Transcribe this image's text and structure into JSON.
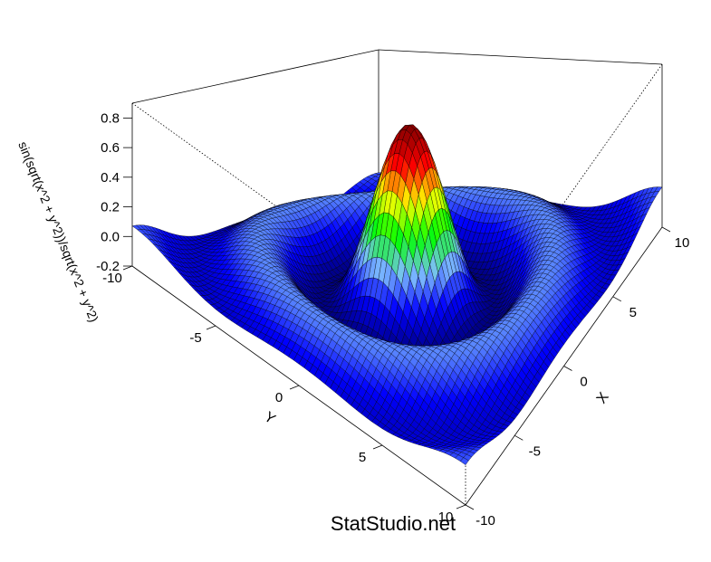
{
  "chart_data": {
    "type": "surface3d",
    "function": "sin(sqrt(x^2 + y^2))/sqrt(x^2 + y^2)",
    "x_range": [
      -10,
      10
    ],
    "y_range": [
      -10,
      10
    ],
    "z_range": [
      -0.2,
      0.9
    ],
    "grid_steps": 64,
    "x_axis": {
      "label": "X",
      "ticks": [
        "-10",
        "-5",
        "0",
        "5",
        "10"
      ]
    },
    "y_axis": {
      "label": "Y",
      "ticks": [
        "-10",
        "-5",
        "0",
        "5",
        "10"
      ]
    },
    "z_axis": {
      "label": "sin(sqrt(x^2 + y^2))/sqrt(x^2 + y^2)",
      "ticks": [
        "-0.2",
        "0.0",
        "0.2",
        "0.4",
        "0.6",
        "0.8"
      ]
    },
    "colormap": [
      "#00007f",
      "#0000ff",
      "#7fbfff",
      "#00ff00",
      "#ffff00",
      "#ff0000",
      "#7f0000"
    ],
    "mesh_color": "#000000",
    "box": true
  },
  "watermark": "StatStudio.net"
}
